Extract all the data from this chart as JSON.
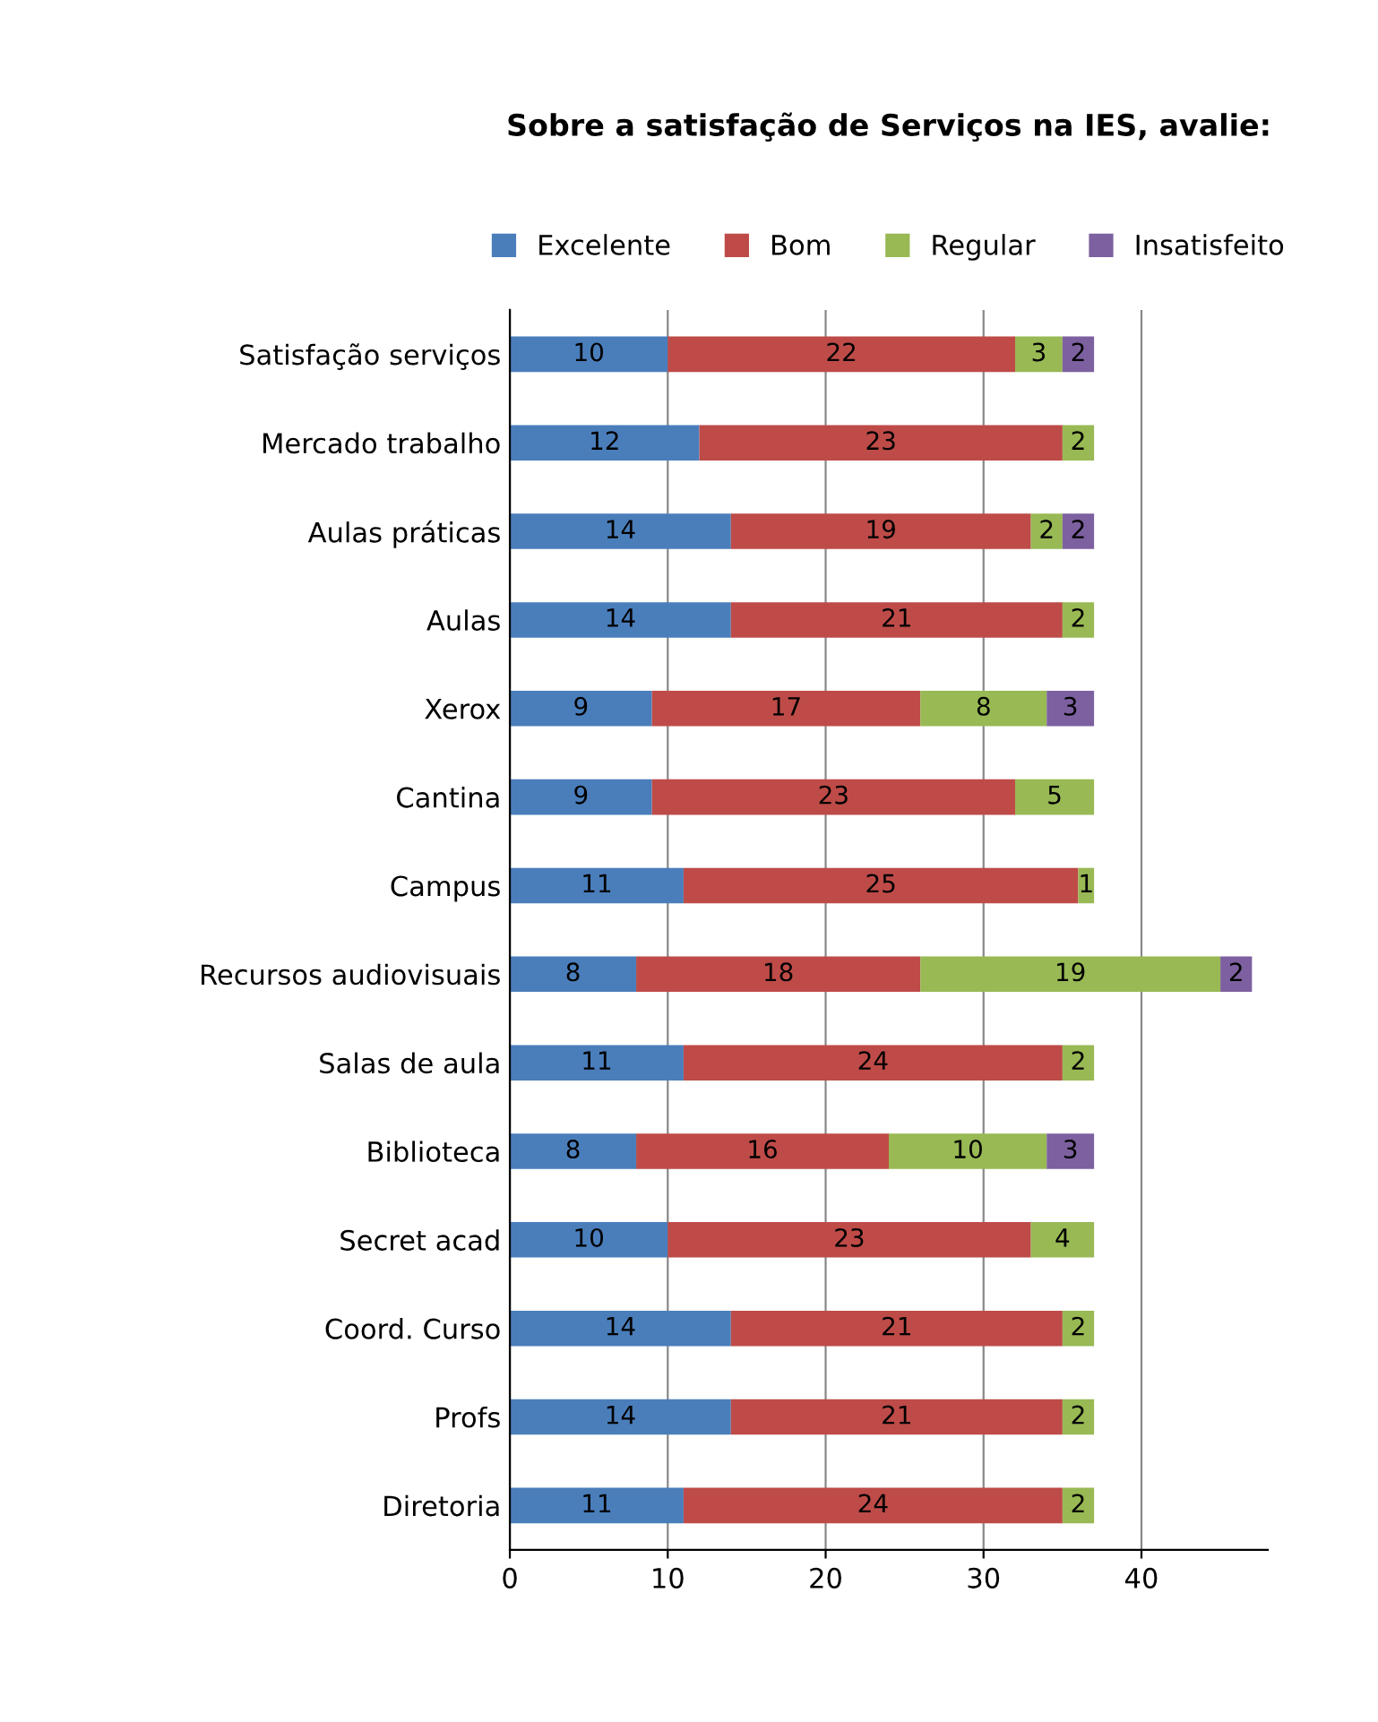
{
  "chart_data": {
    "type": "bar",
    "orientation": "horizontal",
    "stacked": true,
    "title": "Sobre a satisfação de Serviços na IES, avalie:",
    "categories": [
      "Satisfação serviços",
      "Mercado trabalho",
      "Aulas práticas",
      "Aulas",
      "Xerox",
      "Cantina",
      "Campus",
      "Recursos audiovisuais",
      "Salas de aula",
      "Biblioteca",
      "Secret acad",
      "Coord. Curso",
      "Profs",
      "Diretoria"
    ],
    "series": [
      {
        "name": "Excelente",
        "color": "#4a7ebb",
        "values": [
          10,
          12,
          14,
          14,
          9,
          9,
          11,
          8,
          11,
          8,
          10,
          14,
          14,
          11
        ]
      },
      {
        "name": "Bom",
        "color": "#be4b48",
        "values": [
          22,
          23,
          19,
          21,
          17,
          23,
          25,
          18,
          24,
          16,
          23,
          21,
          21,
          24
        ]
      },
      {
        "name": "Regular",
        "color": "#98b954",
        "values": [
          3,
          2,
          2,
          2,
          8,
          5,
          1,
          19,
          2,
          10,
          4,
          2,
          2,
          2
        ]
      },
      {
        "name": "Insatisfeito",
        "color": "#7d60a0",
        "values": [
          2,
          null,
          2,
          null,
          3,
          null,
          null,
          2,
          null,
          3,
          null,
          null,
          null,
          null
        ]
      }
    ],
    "xlim": [
      0,
      48
    ],
    "xticks": [
      0,
      10,
      20,
      30,
      40
    ],
    "grid": "x",
    "legend": "top",
    "data_labels": true
  }
}
